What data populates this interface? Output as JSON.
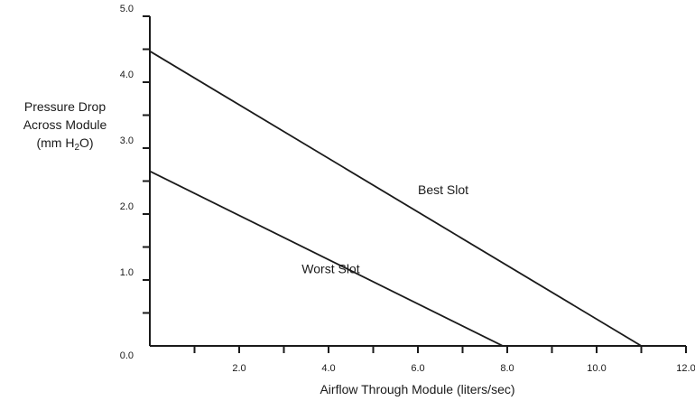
{
  "chart_data": {
    "type": "line",
    "title": "",
    "ylabel": {
      "line1": "Pressure Drop",
      "line2": "Across Module",
      "line3_pre": "(mm H",
      "line3_sub": "2",
      "line3_post": "O)"
    },
    "xlabel": "Airflow Through Module (liters/sec)",
    "xlim": [
      0,
      12
    ],
    "ylim": [
      0,
      5
    ],
    "x_ticks": [
      {
        "value": 2,
        "label": "2.0"
      },
      {
        "value": 4,
        "label": "4.0"
      },
      {
        "value": 6,
        "label": "6.0"
      },
      {
        "value": 8,
        "label": "8.0"
      },
      {
        "value": 10,
        "label": "10.0"
      },
      {
        "value": 12,
        "label": "12.0"
      }
    ],
    "x_minor_ticks": [
      1,
      3,
      5,
      7,
      9,
      11
    ],
    "y_ticks": [
      {
        "value": 0,
        "label": "0.0"
      },
      {
        "value": 1,
        "label": "1.0"
      },
      {
        "value": 2,
        "label": "2.0"
      },
      {
        "value": 3,
        "label": "3.0"
      },
      {
        "value": 4,
        "label": "4.0"
      },
      {
        "value": 5,
        "label": "5.0"
      }
    ],
    "y_minor_ticks": [
      0.5,
      1.5,
      2.5,
      3.5,
      4.5
    ],
    "grid": false,
    "series": [
      {
        "name": "Best Slot",
        "x": [
          0,
          11.0
        ],
        "y": [
          4.47,
          0
        ],
        "label_at": [
          6.0,
          2.3
        ]
      },
      {
        "name": "Worst Slot",
        "x": [
          0,
          7.9
        ],
        "y": [
          2.65,
          0
        ],
        "label_at": [
          3.4,
          1.1
        ]
      }
    ],
    "line_color": "#1a1a1a"
  }
}
